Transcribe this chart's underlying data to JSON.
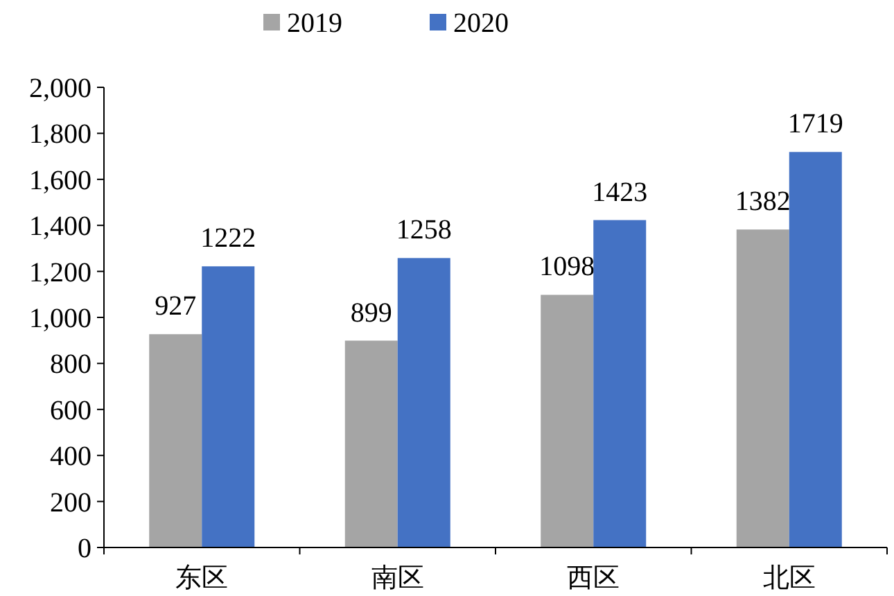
{
  "chart_data": {
    "type": "bar",
    "categories": [
      "东区",
      "南区",
      "西区",
      "北区"
    ],
    "series": [
      {
        "name": "2019",
        "color": "#a5a5a5",
        "values": [
          927,
          899,
          1098,
          1382
        ]
      },
      {
        "name": "2020",
        "color": "#4472c4",
        "values": [
          1222,
          1258,
          1423,
          1719
        ]
      }
    ],
    "ylim": [
      0,
      2000
    ],
    "yticks": [
      {
        "value": 0,
        "label": "0"
      },
      {
        "value": 200,
        "label": "200"
      },
      {
        "value": 400,
        "label": "400"
      },
      {
        "value": 600,
        "label": "600"
      },
      {
        "value": 800,
        "label": "800"
      },
      {
        "value": 1000,
        "label": "1,000"
      },
      {
        "value": 1200,
        "label": "1,200"
      },
      {
        "value": 1400,
        "label": "1,400"
      },
      {
        "value": 1600,
        "label": "1,600"
      },
      {
        "value": 1800,
        "label": "1,800"
      },
      {
        "value": 2000,
        "label": "2,000"
      }
    ],
    "data_labels": true,
    "grid": false,
    "legend": "top"
  }
}
